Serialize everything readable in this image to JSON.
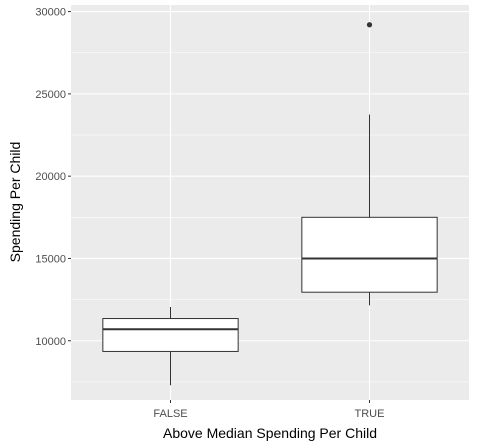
{
  "chart_data": {
    "type": "boxplot",
    "xlabel": "Above Median Spending Per Child",
    "ylabel": "Spending Per Child",
    "categories": [
      "FALSE",
      "TRUE"
    ],
    "ylim": [
      6400,
      30400
    ],
    "yticks": [
      10000,
      15000,
      20000,
      25000,
      30000
    ],
    "ytick_labels": [
      "10000",
      "15000",
      "20000",
      "25000",
      "30000"
    ],
    "grid": true,
    "background": "#ebebeb",
    "grid_color": "#ffffff",
    "box_fill": "#ffffff",
    "box_stroke": "#333333",
    "boxes": [
      {
        "category": "FALSE",
        "whisker_low": 7300,
        "q1": 9350,
        "median": 10700,
        "q3": 11350,
        "whisker_high": 12050,
        "outliers": []
      },
      {
        "category": "TRUE",
        "whisker_low": 12150,
        "q1": 12950,
        "median": 15000,
        "q3": 17500,
        "whisker_high": 23750,
        "outliers": [
          29200
        ]
      }
    ]
  }
}
